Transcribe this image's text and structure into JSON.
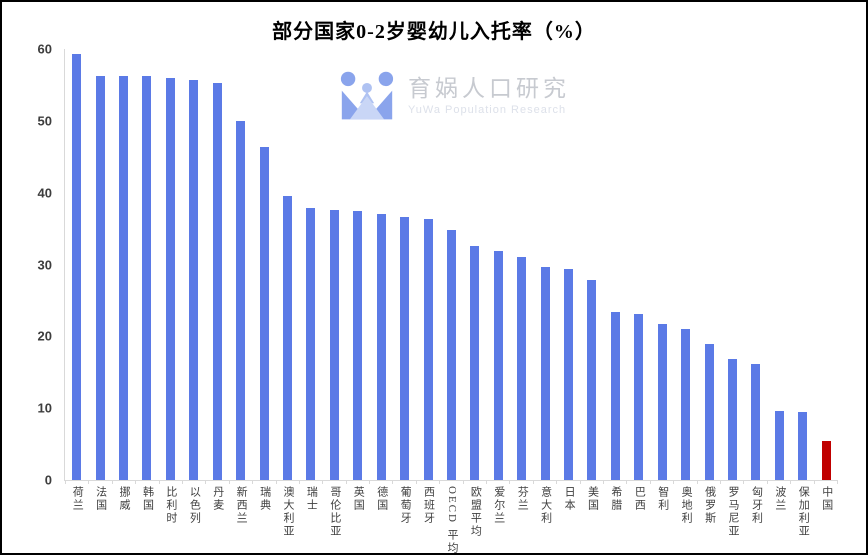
{
  "title": "部分国家0-2岁婴幼儿入托率（%）",
  "watermark": {
    "brand": "育娲人口研究",
    "subtitle": "YuWa Population Research",
    "icon": "yuwa-family-logo",
    "icon_colors": {
      "dark_blue": "#8aa4ec",
      "mid_blue": "#afc2f2",
      "light_blue": "#c9d6f6"
    }
  },
  "chart_data": {
    "type": "bar",
    "title": "部分国家0-2岁婴幼儿入托率（%）",
    "xlabel": "",
    "ylabel": "",
    "unit": "%",
    "ylim": [
      0,
      60
    ],
    "yticks": [
      0,
      10,
      20,
      30,
      40,
      50,
      60
    ],
    "grid": "off",
    "legend": "none",
    "categories": [
      "荷兰",
      "法国",
      "挪威",
      "韩国",
      "比利时",
      "以色列",
      "丹麦",
      "新西兰",
      "瑞典",
      "澳大利亚",
      "瑞士",
      "哥伦比亚",
      "英国",
      "德国",
      "葡萄牙",
      "西班牙",
      "OECD 平均",
      "欧盟平均",
      "爱尔兰",
      "芬兰",
      "意大利",
      "日本",
      "美国",
      "希腊",
      "巴西",
      "智利",
      "奥地利",
      "俄罗斯",
      "罗马尼亚",
      "匈牙利",
      "波兰",
      "保加利亚",
      "中国"
    ],
    "values": [
      59.3,
      56.3,
      56.3,
      56.2,
      55.9,
      55.7,
      55.2,
      50.0,
      46.4,
      39.6,
      37.8,
      37.6,
      37.5,
      37.1,
      36.6,
      36.3,
      34.8,
      32.6,
      31.9,
      31.0,
      29.6,
      29.4,
      27.8,
      23.4,
      23.1,
      21.7,
      21.0,
      18.9,
      16.8,
      16.2,
      9.6,
      9.4,
      5.5
    ],
    "bar_color_default": "#5b7ae6",
    "bar_color_highlight": "#c00000",
    "highlight_category": "中国",
    "axis_line_color": "#d9d9d9"
  }
}
